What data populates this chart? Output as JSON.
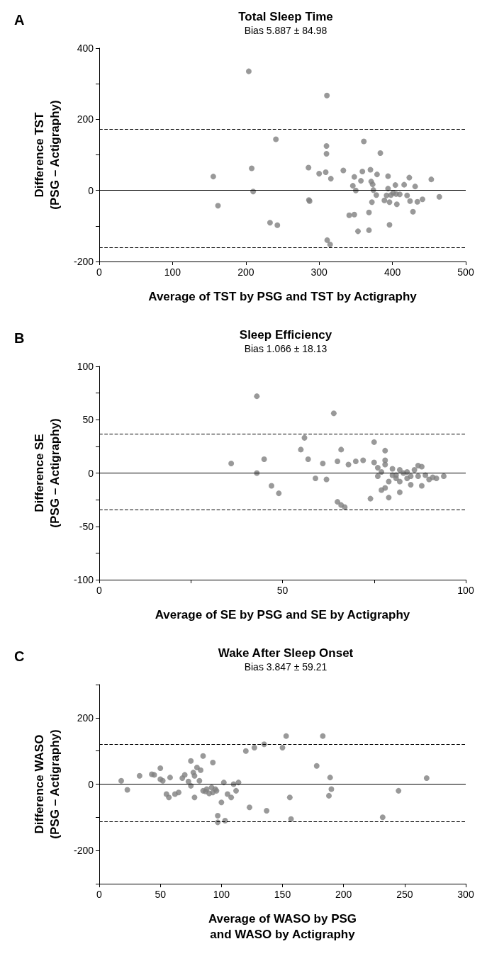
{
  "chart_data": [
    {
      "type": "scatter",
      "title": "Total Sleep Time",
      "subtitle": "Bias 5.887 ± 84.98",
      "xlabel": "Average of TST by PSG and TST by Actigraphy",
      "ylabel": "Difference TST\n(PSG – Actigraphy)",
      "annotations": [
        "A"
      ],
      "marker": "circle",
      "grid": false,
      "xlim": [
        0,
        500
      ],
      "xticks": [
        0,
        100,
        200,
        300,
        400,
        500
      ],
      "ylim": [
        -200,
        400
      ],
      "yticks": [
        -200,
        {
          "value": -100,
          "label": null
        },
        0,
        {
          "value": 100,
          "label": null
        },
        200,
        {
          "value": 300,
          "label": null
        },
        400
      ],
      "ref_lines": [
        {
          "axis": "y",
          "value": 0,
          "line_style": "solid",
          "color": "#000000"
        },
        {
          "axis": "y",
          "value": 172.4,
          "line_style": "dashed",
          "color": "#000000"
        },
        {
          "axis": "y",
          "value": -160.7,
          "line_style": "dashed",
          "color": "#000000"
        }
      ],
      "series": [
        {
          "color": "#7f7f7f",
          "x": [
            204,
            310.6,
            241,
            361,
            310,
            310,
            383.5,
            155.6,
            208,
            285.5,
            300,
            309,
            316,
            333,
            348,
            359,
            370,
            379,
            357,
            371,
            373,
            394,
            346,
            350,
            374,
            394,
            404,
            416,
            423,
            431,
            453,
            210,
            162,
            286,
            287,
            378,
            372,
            389,
            392,
            396,
            398,
            401,
            405,
            410,
            406,
            420,
            424,
            434,
            441,
            464,
            428,
            368,
            341,
            348,
            233,
            243,
            396,
            353,
            368,
            311,
            315
          ],
          "values": [
            335,
            267,
            144,
            138,
            125,
            103,
            105,
            39,
            62,
            64,
            47,
            51,
            33,
            56,
            38,
            53,
            58,
            45,
            27,
            25,
            17,
            40,
            13,
            0,
            1,
            5,
            15,
            16,
            36,
            11,
            31,
            -3,
            -43,
            -27,
            -30,
            -13,
            -33,
            -28,
            -14,
            -33,
            -13,
            -7,
            -10,
            -11,
            -39,
            -14,
            -30,
            -32,
            -25,
            -18,
            -60,
            -62,
            -70,
            -68,
            -91,
            -98,
            -97,
            -115,
            -112,
            -140,
            -152
          ]
        }
      ]
    },
    {
      "type": "scatter",
      "title": "Sleep Efficiency",
      "subtitle": "Bias 1.066 ± 18.13",
      "xlabel": "Average of SE by PSG and SE by Actigraphy",
      "ylabel": "Difference SE\n(PSG – Actigraphy)",
      "annotations": [
        "B"
      ],
      "marker": "circle",
      "grid": false,
      "xlim": [
        0,
        100
      ],
      "xticks": [
        0,
        {
          "value": 25,
          "label": null
        },
        50,
        {
          "value": 75,
          "label": null
        },
        100
      ],
      "ylim": [
        -100,
        100
      ],
      "yticks": [
        -100,
        {
          "value": -75,
          "label": null
        },
        -50,
        {
          "value": -25,
          "label": null
        },
        0,
        {
          "value": 25,
          "label": null
        },
        50,
        {
          "value": 75,
          "label": null
        },
        100
      ],
      "ref_lines": [
        {
          "axis": "y",
          "value": 0,
          "line_style": "solid",
          "color": "#000000"
        },
        {
          "axis": "y",
          "value": 36.6,
          "line_style": "dashed",
          "color": "#000000"
        },
        {
          "axis": "y",
          "value": -34.5,
          "line_style": "dashed",
          "color": "#000000"
        }
      ],
      "series": [
        {
          "color": "#7f7f7f",
          "x": [
            36,
            43,
            43,
            45,
            47,
            49,
            55,
            56,
            57,
            59,
            61,
            62,
            64,
            65,
            66,
            67,
            66,
            65,
            68,
            70,
            72,
            74,
            75,
            75,
            76,
            76,
            77,
            77,
            78,
            78,
            78,
            78,
            79,
            79,
            80,
            80,
            81,
            81,
            82,
            82,
            82,
            83,
            84,
            84,
            85,
            85,
            86,
            87,
            87,
            88,
            88,
            89,
            90,
            91,
            92,
            94
          ],
          "values": [
            9,
            72,
            0,
            13,
            -12,
            -19,
            22,
            33,
            13,
            -5,
            9,
            -6,
            56,
            -27,
            -30,
            -32,
            22,
            11,
            8,
            11,
            12,
            -24,
            29,
            10,
            5,
            -3,
            1,
            -16,
            -14,
            21,
            12,
            8,
            -8,
            -23,
            4,
            -2,
            -5,
            -2,
            3,
            -18,
            -8,
            0,
            1,
            -5,
            -11,
            -3,
            3,
            -3,
            7,
            -12,
            6,
            -2,
            -6,
            -4,
            -5,
            -3
          ]
        }
      ]
    },
    {
      "type": "scatter",
      "title": "Wake After Sleep Onset",
      "subtitle": "Bias 3.847 ± 59.21",
      "xlabel": "Average of WASO by PSG\nand WASO by Actigraphy",
      "ylabel": "Difference WASO\n(PSG – Actigraphy)",
      "annotations": [
        "C"
      ],
      "marker": "circle",
      "grid": false,
      "xlim": [
        0,
        300
      ],
      "xticks": [
        0,
        50,
        100,
        150,
        200,
        250,
        300
      ],
      "ylim": [
        -300,
        300
      ],
      "yticks": [
        {
          "value": -300,
          "label": null
        },
        -200,
        {
          "value": -100,
          "label": null
        },
        0,
        {
          "value": 100,
          "label": null
        },
        200,
        {
          "value": 300,
          "label": null
        }
      ],
      "ref_lines": [
        {
          "axis": "y",
          "value": 0,
          "line_style": "solid",
          "color": "#000000"
        },
        {
          "axis": "y",
          "value": 119.9,
          "line_style": "dashed",
          "color": "#000000"
        },
        {
          "axis": "y",
          "value": -112.2,
          "line_style": "dashed",
          "color": "#000000"
        }
      ],
      "series": [
        {
          "color": "#7f7f7f",
          "x": [
            18,
            23,
            33,
            43,
            45,
            50,
            50,
            52,
            55,
            57,
            58,
            62,
            65,
            68,
            70,
            73,
            75,
            75,
            77,
            78,
            78,
            80,
            82,
            83,
            85,
            85,
            87,
            88,
            90,
            92,
            93,
            93,
            95,
            96,
            97,
            97,
            100,
            102,
            103,
            105,
            108,
            110,
            112,
            114,
            120,
            123,
            127,
            135,
            137,
            150,
            153,
            156,
            157,
            178,
            183,
            188,
            189,
            190,
            232,
            245,
            268
          ],
          "values": [
            10,
            -17,
            25,
            30,
            28,
            48,
            15,
            10,
            -30,
            -40,
            20,
            -30,
            -25,
            18,
            28,
            8,
            70,
            -5,
            35,
            25,
            -40,
            50,
            10,
            42,
            85,
            -20,
            -22,
            -15,
            -28,
            -10,
            65,
            -25,
            -15,
            -20,
            -115,
            -95,
            -55,
            5,
            -110,
            -30,
            -40,
            0,
            -20,
            5,
            100,
            -70,
            110,
            120,
            -80,
            110,
            145,
            -40,
            -105,
            55,
            145,
            -35,
            20,
            -15,
            -100,
            -20,
            18
          ]
        }
      ]
    }
  ]
}
